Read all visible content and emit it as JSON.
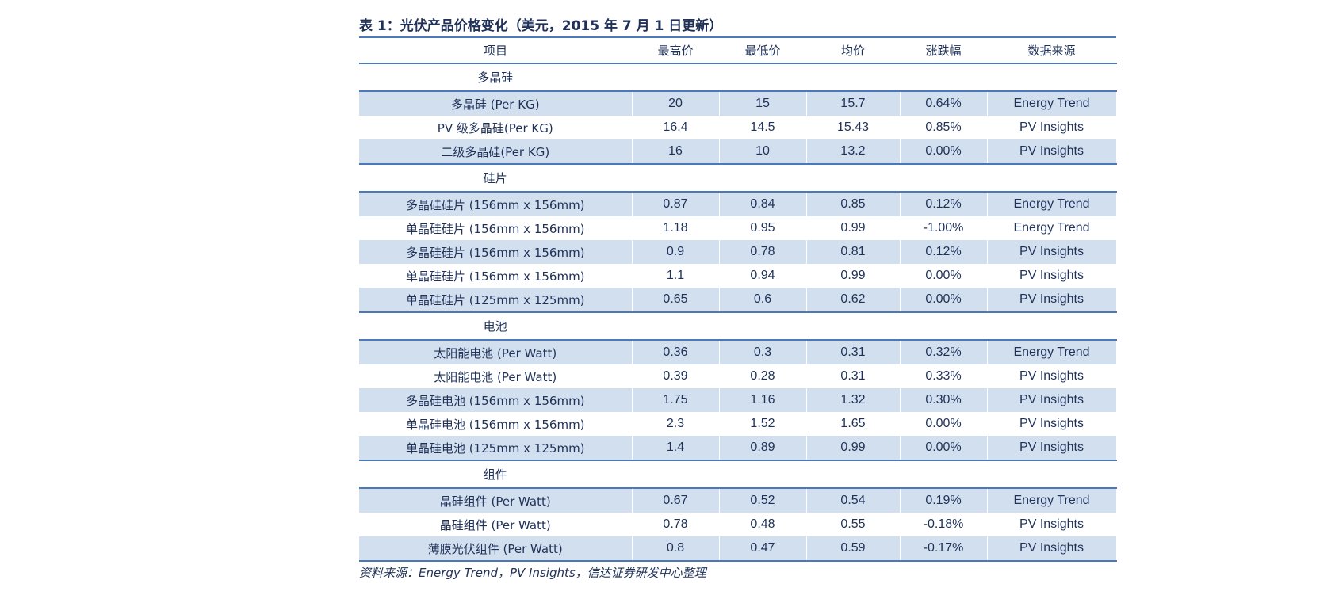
{
  "title": "表 1：光伏产品价格变化（美元，2015 年 7 月 1 日更新）",
  "headers": [
    "项目",
    "最高价",
    "最低价",
    "均价",
    "涨跌幅",
    "数据来源"
  ],
  "sections": [
    {
      "name": "多晶硅",
      "rows": [
        [
          "多晶硅 (Per KG)",
          "20",
          "15",
          "15.7",
          "0.64%",
          "Energy Trend"
        ],
        [
          "PV 级多晶硅(Per KG)",
          "16.4",
          "14.5",
          "15.43",
          "0.85%",
          "PV Insights"
        ],
        [
          "二级多晶硅(Per KG)",
          "16",
          "10",
          "13.2",
          "0.00%",
          "PV Insights"
        ]
      ]
    },
    {
      "name": "硅片",
      "rows": [
        [
          "多晶硅硅片 (156mm x 156mm)",
          "0.87",
          "0.84",
          "0.85",
          "0.12%",
          "Energy Trend"
        ],
        [
          "单晶硅硅片 (156mm x 156mm)",
          "1.18",
          "0.95",
          "0.99",
          "-1.00%",
          "Energy Trend"
        ],
        [
          "多晶硅硅片 (156mm x 156mm)",
          "0.9",
          "0.78",
          "0.81",
          "0.12%",
          "PV Insights"
        ],
        [
          "单晶硅硅片 (156mm x 156mm)",
          "1.1",
          "0.94",
          "0.99",
          "0.00%",
          "PV Insights"
        ],
        [
          "单晶硅硅片 (125mm x 125mm)",
          "0.65",
          "0.6",
          "0.62",
          "0.00%",
          "PV Insights"
        ]
      ]
    },
    {
      "name": "电池",
      "rows": [
        [
          "太阳能电池 (Per Watt)",
          "0.36",
          "0.3",
          "0.31",
          "0.32%",
          "Energy Trend"
        ],
        [
          "太阳能电池 (Per Watt)",
          "0.39",
          "0.28",
          "0.31",
          "0.33%",
          "PV Insights"
        ],
        [
          "多晶硅电池 (156mm x 156mm)",
          "1.75",
          "1.16",
          "1.32",
          "0.30%",
          "PV Insights"
        ],
        [
          "单晶硅电池 (156mm x 156mm)",
          "2.3",
          "1.52",
          "1.65",
          "0.00%",
          "PV Insights"
        ],
        [
          "单晶硅电池 (125mm x 125mm)",
          "1.4",
          "0.89",
          "0.99",
          "0.00%",
          "PV Insights"
        ]
      ]
    },
    {
      "name": "组件",
      "rows": [
        [
          "晶硅组件 (Per Watt)",
          "0.67",
          "0.52",
          "0.54",
          "0.19%",
          "Energy Trend"
        ],
        [
          "晶硅组件 (Per Watt)",
          "0.78",
          "0.48",
          "0.55",
          "-0.18%",
          "PV Insights"
        ],
        [
          "薄膜光伏组件 (Per Watt)",
          "0.8",
          "0.47",
          "0.59",
          "-0.17%",
          "PV Insights"
        ]
      ]
    }
  ],
  "source": "资料来源：Energy Trend，PV Insights，信达证券研发中心整理",
  "colors": {
    "header_rule": "#4a78b8",
    "row_shade": "#d2dfee",
    "text": "#1f3158"
  }
}
